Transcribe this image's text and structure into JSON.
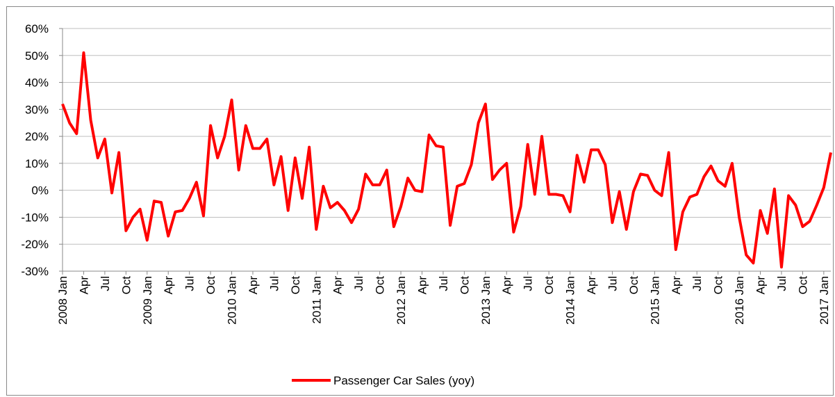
{
  "chart_data": {
    "type": "line",
    "categories": [
      "2008 Jan",
      null,
      null,
      "Apr",
      null,
      null,
      "Jul",
      null,
      null,
      "Oct",
      null,
      null,
      "2009 Jan",
      null,
      null,
      "Apr",
      null,
      null,
      "Jul",
      null,
      null,
      "Oct",
      null,
      null,
      "2010 Jan",
      null,
      null,
      "Apr",
      null,
      null,
      "Jul",
      null,
      null,
      "Oct",
      null,
      null,
      "2011 Jan",
      null,
      null,
      "Apr",
      null,
      null,
      "Jul",
      null,
      null,
      "Oct",
      null,
      null,
      "2012 Jan",
      null,
      null,
      "Apr",
      null,
      null,
      "Jul",
      null,
      null,
      "Oct",
      null,
      null,
      "2013 Jan",
      null,
      null,
      "Apr",
      null,
      null,
      "Jul",
      null,
      null,
      "Oct",
      null,
      null,
      "2014 Jan",
      null,
      null,
      "Apr",
      null,
      null,
      "Jul",
      null,
      null,
      "Oct",
      null,
      null,
      "2015 Jan",
      null,
      null,
      "Apr",
      null,
      null,
      "Jul",
      null,
      null,
      "Oct",
      null,
      null,
      "2016 Jan",
      null,
      null,
      "Apr",
      null,
      null,
      "Jul",
      null,
      null,
      "Oct",
      null,
      null,
      "2017 Jan",
      null
    ],
    "series": [
      {
        "name": "Passenger Car Sales (yoy)",
        "color": "#ff0000",
        "values": [
          32,
          25,
          21,
          51,
          26,
          12,
          19,
          -1,
          14,
          -15,
          -10,
          -7,
          -18.5,
          -4,
          -4.5,
          -17,
          -8,
          -7.5,
          -3,
          3,
          -9.5,
          24,
          12,
          20,
          33.5,
          7.5,
          24,
          15.5,
          15.5,
          19,
          2,
          12.5,
          -7.5,
          12,
          -3,
          16,
          -14.5,
          1.5,
          -6.5,
          -4.5,
          -7.5,
          -12,
          -7,
          6,
          2,
          2,
          7.5,
          -13.5,
          -6,
          4.5,
          0,
          -0.5,
          20.5,
          16.5,
          16,
          -13,
          1.5,
          2.5,
          9.5,
          25,
          32,
          4,
          7.5,
          10,
          -15.5,
          -6,
          17,
          -1.5,
          20,
          -1.5,
          -1.5,
          -2,
          -8,
          13,
          3,
          15,
          15,
          9.5,
          -12,
          -0.5,
          -14.5,
          -0.5,
          6,
          5.5,
          0,
          -2,
          14,
          -22,
          -8,
          -2.5,
          -1.5,
          5,
          9,
          3.5,
          1.5,
          10,
          -10,
          -24,
          -27,
          -7.5,
          -16,
          0.5,
          -28.5,
          -2,
          -5.5,
          -13.5,
          -11.5,
          -5.5,
          1,
          14
        ]
      }
    ],
    "ylim": [
      -30,
      60
    ],
    "yticks": [
      {
        "value": -30,
        "label": "-30%"
      },
      {
        "value": -20,
        "label": "-20%"
      },
      {
        "value": -10,
        "label": "-10%"
      },
      {
        "value": 0,
        "label": "0%"
      },
      {
        "value": 10,
        "label": "10%"
      },
      {
        "value": 20,
        "label": "20%"
      },
      {
        "value": 30,
        "label": "30%"
      },
      {
        "value": 40,
        "label": "40%"
      },
      {
        "value": 50,
        "label": "50%"
      },
      {
        "value": 60,
        "label": "60%"
      }
    ],
    "grid": true,
    "legend": "bottom"
  }
}
